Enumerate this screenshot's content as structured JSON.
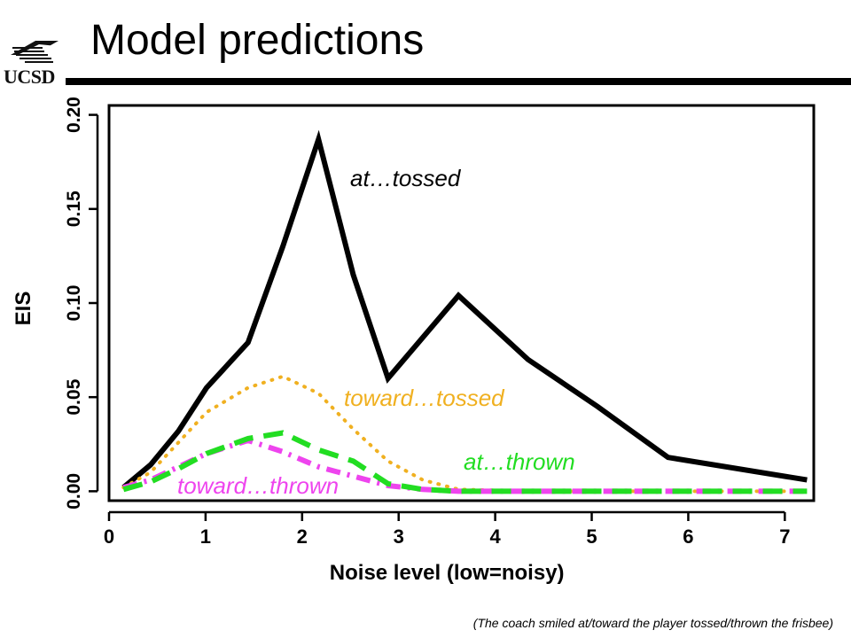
{
  "slide": {
    "title": "Model predictions",
    "logo_text": "UCSD",
    "footnote": "(The coach smiled at/toward the player tossed/thrown the frisbee)"
  },
  "chart_data": {
    "type": "line",
    "title": "",
    "xlabel": "Noise level (low=noisy)",
    "ylabel": "EIS",
    "xlim": [
      0,
      7.3
    ],
    "ylim": [
      -0.005,
      0.205
    ],
    "x_ticks": [
      0,
      1,
      2,
      3,
      4,
      5,
      6,
      7
    ],
    "y_ticks": [
      0.0,
      0.05,
      0.1,
      0.15,
      0.2
    ],
    "y_tick_labels": [
      "0.00",
      "0.05",
      "0.10",
      "0.15",
      "0.20"
    ],
    "grid": false,
    "series": [
      {
        "name": "at…tossed",
        "color": "#000000",
        "style": "solid",
        "x": [
          0.15,
          0.43,
          0.72,
          1.01,
          1.44,
          1.8,
          2.17,
          2.53,
          2.89,
          3.62,
          4.34,
          5.06,
          5.79,
          7.23
        ],
        "y": [
          0.002,
          0.014,
          0.032,
          0.055,
          0.079,
          0.13,
          0.187,
          0.115,
          0.06,
          0.104,
          0.07,
          0.045,
          0.018,
          0.006
        ]
      },
      {
        "name": "toward…tossed",
        "color": "#f0b020",
        "style": "dotted",
        "x": [
          0.15,
          0.43,
          0.72,
          1.01,
          1.44,
          1.8,
          2.17,
          2.53,
          2.89,
          3.25,
          3.62,
          4.34,
          5.06,
          5.79,
          7.23
        ],
        "y": [
          0.002,
          0.01,
          0.026,
          0.042,
          0.055,
          0.061,
          0.052,
          0.033,
          0.016,
          0.006,
          0.001,
          0.0,
          0.0,
          0.0,
          0.0
        ]
      },
      {
        "name": "at…thrown",
        "color": "#22dd22",
        "style": "dashed",
        "x": [
          0.15,
          0.43,
          0.72,
          1.01,
          1.44,
          1.8,
          2.17,
          2.53,
          2.89,
          3.25,
          3.62,
          4.34,
          5.06,
          5.79,
          7.23
        ],
        "y": [
          0.001,
          0.005,
          0.012,
          0.02,
          0.028,
          0.031,
          0.022,
          0.016,
          0.004,
          0.001,
          0.0,
          0.0,
          0.0,
          0.0,
          0.0
        ]
      },
      {
        "name": "toward…thrown",
        "color": "#ee44ee",
        "style": "dashdot",
        "x": [
          0.15,
          0.43,
          0.72,
          1.01,
          1.44,
          1.8,
          2.17,
          2.53,
          2.89,
          3.25,
          3.62,
          4.34,
          5.06,
          5.79,
          7.23
        ],
        "y": [
          0.002,
          0.006,
          0.013,
          0.02,
          0.027,
          0.021,
          0.013,
          0.008,
          0.003,
          0.001,
          0.0,
          0.0,
          0.0,
          0.0,
          0.0
        ]
      }
    ]
  }
}
